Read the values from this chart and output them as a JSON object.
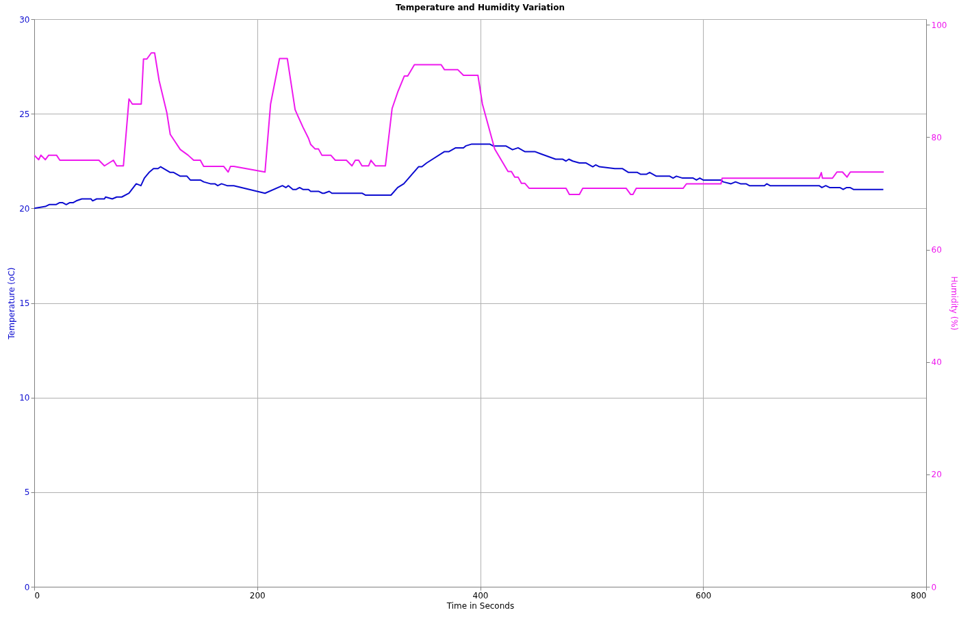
{
  "chart_data": {
    "type": "line",
    "title": "Temperature and Humidity Variation",
    "xlabel": "Time in Seconds",
    "ylabel": "Temperature (oC)",
    "y2label": "Humidity (%)",
    "xlim": [
      0,
      800
    ],
    "xticks": [
      0,
      200,
      400,
      600,
      800
    ],
    "ylim": [
      0,
      30
    ],
    "yticks": [
      0,
      5,
      10,
      15,
      20,
      25,
      30
    ],
    "y2lim": [
      0,
      101
    ],
    "y2ticks": [
      0,
      20,
      40,
      60,
      80,
      100
    ],
    "grid": true,
    "marker": "none",
    "line_style": "solid",
    "series": [
      {
        "color": "#0b0bd0",
        "x": [
          0,
          10,
          13.4,
          19.5,
          22.6,
          25.6,
          28.7,
          31.7,
          34.8,
          37.8,
          42.7,
          51,
          52.4,
          56,
          63,
          64,
          70,
          74,
          78.5,
          85,
          91.5,
          95.7,
          98.8,
          103,
          107,
          111,
          113.4,
          122,
          125,
          131,
          137,
          140,
          149,
          152,
          158,
          162,
          164.6,
          168,
          173,
          179,
          207,
          222.6,
          225.7,
          228,
          232,
          235,
          238,
          241,
          246,
          248,
          255,
          258.5,
          260,
          264.6,
          267,
          294,
          297,
          320,
          326,
          331.5,
          344.7,
          347.7,
          352,
          368,
          372,
          378,
          385,
          387,
          392.5,
          408.5,
          411.6,
          423,
          429,
          434,
          440,
          449,
          453.6,
          467.6,
          473.8,
          477,
          479.5,
          483,
          489,
          495,
          501,
          503.7,
          507,
          520.7,
          527.7,
          533,
          541,
          544,
          549,
          552,
          558,
          570,
          573,
          576,
          581.5,
          591,
          594,
          597,
          600,
          616,
          618,
          625,
          629,
          633.5,
          638.4,
          641.5,
          655,
          657,
          660,
          704,
          706.5,
          710,
          713.4,
          722.6,
          725.6,
          728.7,
          731.7,
          734.8,
          761.6
        ],
        "values": [
          20.0,
          20.1,
          20.2,
          20.2,
          20.3,
          20.3,
          20.2,
          20.3,
          20.3,
          20.4,
          20.5,
          20.5,
          20.4,
          20.5,
          20.5,
          20.6,
          20.5,
          20.6,
          20.6,
          20.8,
          21.3,
          21.2,
          21.6,
          21.9,
          22.1,
          22.1,
          22.2,
          21.9,
          21.9,
          21.7,
          21.7,
          21.5,
          21.5,
          21.4,
          21.3,
          21.3,
          21.2,
          21.3,
          21.2,
          21.2,
          20.8,
          21.2,
          21.1,
          21.2,
          21.0,
          21.0,
          21.1,
          21.0,
          21.0,
          20.9,
          20.9,
          20.8,
          20.8,
          20.9,
          20.8,
          20.8,
          20.7,
          20.7,
          21.1,
          21.3,
          22.2,
          22.2,
          22.4,
          23.0,
          23.0,
          23.2,
          23.2,
          23.3,
          23.4,
          23.4,
          23.3,
          23.3,
          23.1,
          23.2,
          23.0,
          23.0,
          22.9,
          22.6,
          22.6,
          22.5,
          22.6,
          22.5,
          22.4,
          22.4,
          22.2,
          22.3,
          22.2,
          22.1,
          22.1,
          21.9,
          21.9,
          21.8,
          21.8,
          21.9,
          21.7,
          21.7,
          21.6,
          21.7,
          21.6,
          21.6,
          21.5,
          21.6,
          21.5,
          21.5,
          21.4,
          21.3,
          21.4,
          21.3,
          21.3,
          21.2,
          21.2,
          21.3,
          21.2,
          21.2,
          21.1,
          21.2,
          21.1,
          21.1,
          21.0,
          21.1,
          21.1,
          21.0,
          21.0
        ]
      },
      {
        "color": "#ee18ee",
        "axis": "y2",
        "x": [
          0,
          4,
          6,
          10,
          13,
          20,
          23,
          58,
          63,
          71,
          74,
          80,
          85,
          88,
          96,
          98,
          101,
          105,
          108,
          112,
          119,
          122,
          131,
          138,
          143,
          149,
          152,
          170,
          174,
          176,
          179,
          207,
          212,
          220,
          227,
          234,
          236,
          241,
          246,
          248,
          252,
          255,
          258,
          266,
          270,
          280,
          285,
          288,
          291,
          294,
          300,
          302,
          306,
          315,
          321,
          326,
          332,
          335,
          341,
          365,
          368,
          380,
          385,
          398,
          402,
          413,
          425,
          428,
          431,
          434,
          437,
          440,
          444,
          477,
          480,
          489,
          492,
          531,
          535,
          537,
          540,
          582,
          585,
          616,
          617,
          704,
          706,
          707,
          716,
          720,
          725,
          729,
          732,
          762
        ],
        "values": [
          76.8,
          76.0,
          76.8,
          76.0,
          76.8,
          76.8,
          75.9,
          75.9,
          74.9,
          75.9,
          74.9,
          74.9,
          86.8,
          85.9,
          85.9,
          93.9,
          93.9,
          95.0,
          95.0,
          90.1,
          84.3,
          80.5,
          77.8,
          76.8,
          75.9,
          75.9,
          74.8,
          74.8,
          73.8,
          74.8,
          74.8,
          73.8,
          85.9,
          94.0,
          94.0,
          84.9,
          84.0,
          81.8,
          79.8,
          78.7,
          77.9,
          77.9,
          76.8,
          76.8,
          75.9,
          75.9,
          74.9,
          75.9,
          75.9,
          74.9,
          74.9,
          75.9,
          74.9,
          74.9,
          85.1,
          88.0,
          90.9,
          90.9,
          92.9,
          92.9,
          92.0,
          92.0,
          91.0,
          91.0,
          85.9,
          77.9,
          73.9,
          73.9,
          72.9,
          72.9,
          71.8,
          71.8,
          70.9,
          70.9,
          69.8,
          69.8,
          70.9,
          70.9,
          69.8,
          69.8,
          70.9,
          70.9,
          71.7,
          71.7,
          72.7,
          72.7,
          73.7,
          72.7,
          72.7,
          73.8,
          73.8,
          72.9,
          73.8,
          73.8
        ]
      }
    ]
  }
}
